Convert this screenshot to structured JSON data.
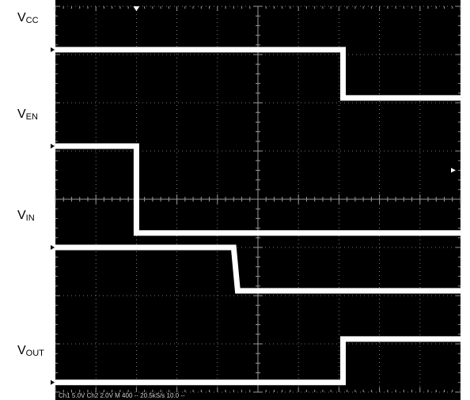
{
  "chart_data": {
    "type": "line",
    "title": "",
    "xlabel": "",
    "ylabel": "",
    "grid": true,
    "x_divisions": 10,
    "y_divisions": 8,
    "series": [
      {
        "name": "VCC",
        "label_main": "V",
        "label_sub": "CC",
        "baseline_div": 0.9,
        "points": [
          [
            0,
            0.9
          ],
          [
            7.1,
            0.9
          ],
          [
            7.1,
            1.9
          ],
          [
            10,
            1.9
          ]
        ]
      },
      {
        "name": "VEN",
        "label_main": "V",
        "label_sub": "EN",
        "baseline_div": 2.9,
        "points": [
          [
            0,
            2.9
          ],
          [
            2.0,
            2.9
          ],
          [
            2.0,
            4.7
          ],
          [
            10,
            4.7
          ]
        ]
      },
      {
        "name": "VIN",
        "label_main": "V",
        "label_sub": "IN",
        "baseline_div": 5.0,
        "points": [
          [
            0,
            5.0
          ],
          [
            4.4,
            5.0
          ],
          [
            4.5,
            5.9
          ],
          [
            10,
            5.9
          ]
        ]
      },
      {
        "name": "VOUT",
        "label_main": "V",
        "label_sub": "OUT",
        "baseline_div": 7.8,
        "points": [
          [
            0,
            7.8
          ],
          [
            7.1,
            7.8
          ],
          [
            7.1,
            6.9
          ],
          [
            10,
            6.9
          ]
        ]
      }
    ],
    "trigger_marker": {
      "x_div": 2.0
    },
    "trigger_level_marker": {
      "y_div": 3.4
    }
  },
  "status_bar": {
    "text": "Ch1   5.0V        Ch2   2.0V        M 400  -- 20.5kS/s    10.0  --"
  },
  "colors": {
    "screen": "#000000",
    "trace": "#ffffff",
    "grid": "#9a9a9a",
    "label": "#000000"
  }
}
